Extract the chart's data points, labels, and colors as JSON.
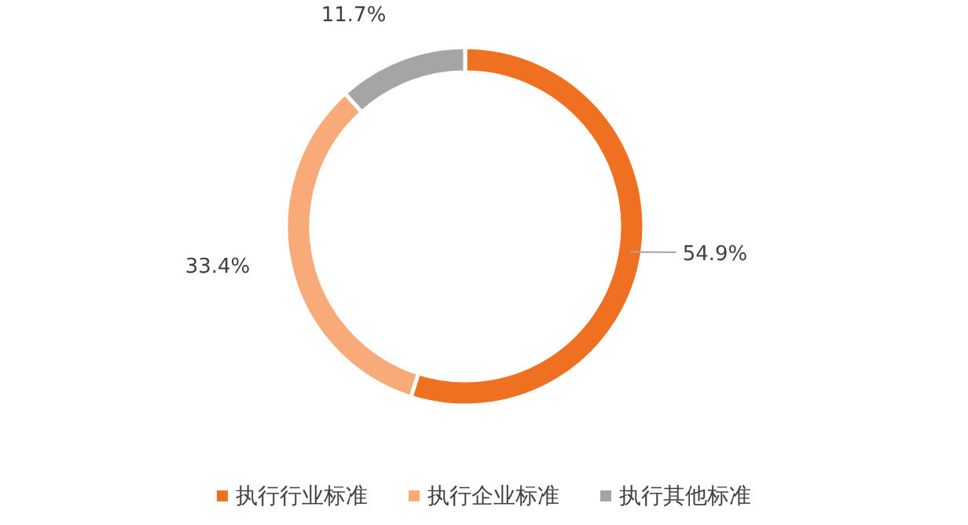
{
  "chart_data": {
    "type": "donut",
    "categories": [
      "执行行业标准",
      "执行企业标准",
      "执行其他标准"
    ],
    "values": [
      54.9,
      33.4,
      11.7
    ],
    "colors": [
      "#f07022",
      "#f8ab78",
      "#a5a5a5"
    ],
    "value_labels": [
      "54.9%",
      "33.4%",
      "11.7%"
    ],
    "legend": "bottom"
  }
}
